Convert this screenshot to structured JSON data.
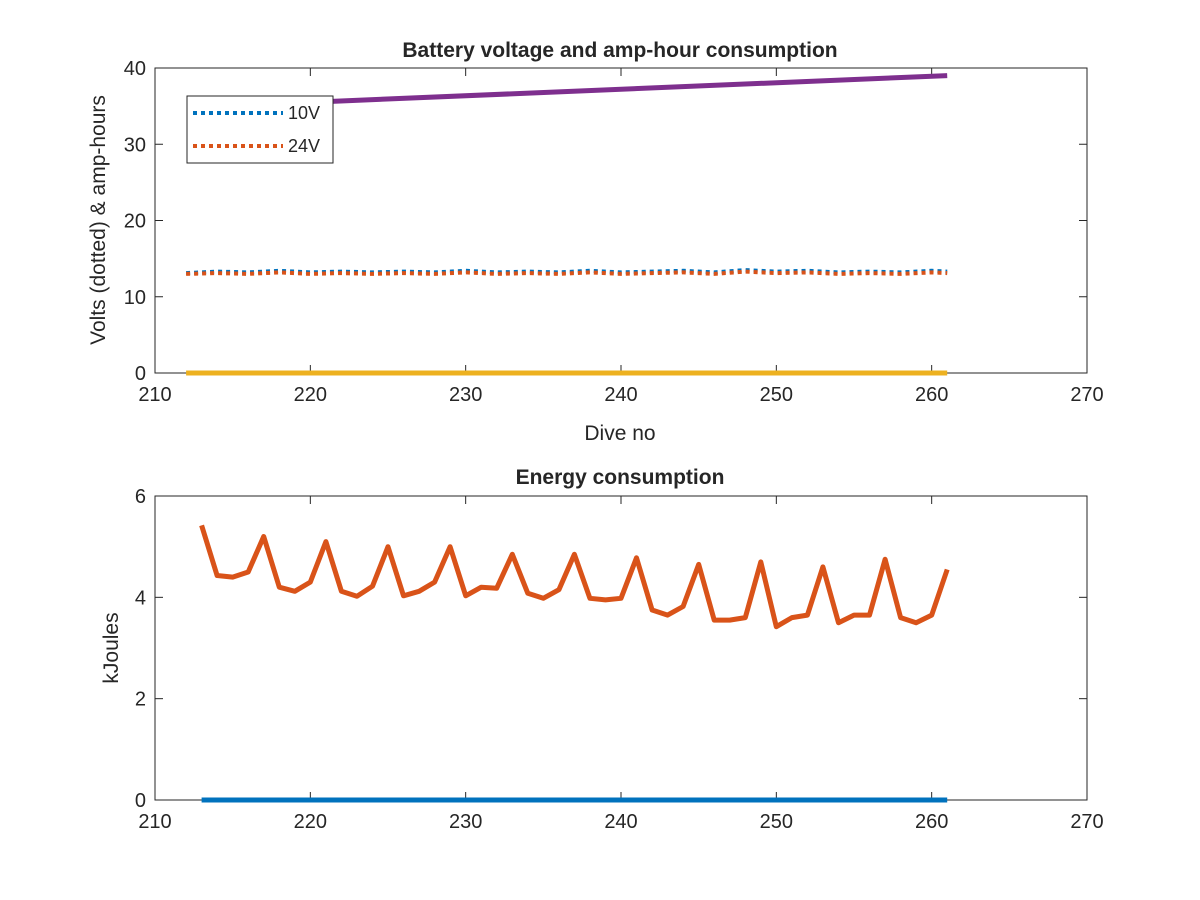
{
  "chart_data": [
    {
      "type": "line",
      "title": "Battery voltage and amp-hour consumption",
      "xlabel": "Dive no",
      "ylabel": "Volts (dotted) & amp-hours",
      "xlim": [
        210,
        270
      ],
      "ylim": [
        0,
        40
      ],
      "xticks": [
        "210",
        "220",
        "230",
        "240",
        "250",
        "260",
        "270"
      ],
      "yticks": [
        "0",
        "10",
        "20",
        "30",
        "40"
      ],
      "legend_position": "top-left",
      "series": [
        {
          "name": "10V",
          "style": "dotted",
          "color": "#0072BD",
          "x": [
            212,
            214,
            216,
            218,
            220,
            222,
            224,
            226,
            228,
            230,
            232,
            234,
            236,
            238,
            240,
            242,
            244,
            246,
            248,
            250,
            252,
            254,
            256,
            258,
            260,
            261
          ],
          "y": [
            13.1,
            13.3,
            13.2,
            13.4,
            13.2,
            13.3,
            13.2,
            13.3,
            13.2,
            13.4,
            13.2,
            13.3,
            13.2,
            13.4,
            13.2,
            13.3,
            13.4,
            13.2,
            13.5,
            13.3,
            13.4,
            13.2,
            13.3,
            13.2,
            13.4,
            13.3
          ]
        },
        {
          "name": "24V",
          "style": "dotted",
          "color": "#D95319",
          "x": [
            212,
            214,
            216,
            218,
            220,
            222,
            224,
            226,
            228,
            230,
            232,
            234,
            236,
            238,
            240,
            242,
            244,
            246,
            248,
            250,
            252,
            254,
            256,
            258,
            260,
            261
          ],
          "y": [
            13.0,
            13.1,
            13.0,
            13.2,
            13.0,
            13.1,
            13.0,
            13.1,
            13.0,
            13.2,
            13.0,
            13.1,
            13.0,
            13.2,
            13.0,
            13.1,
            13.2,
            13.0,
            13.3,
            13.1,
            13.2,
            13.0,
            13.1,
            13.0,
            13.2,
            13.1
          ]
        },
        {
          "style": "solid",
          "color": "#EDB120",
          "x": [
            212,
            261
          ],
          "y": [
            0,
            0
          ]
        },
        {
          "style": "solid",
          "color": "#7E2F8E",
          "x": [
            221,
            261
          ],
          "y": [
            35.6,
            39.0
          ]
        }
      ]
    },
    {
      "type": "line",
      "title": "Energy consumption",
      "xlabel": "",
      "ylabel": "kJoules",
      "xlim": [
        210,
        270
      ],
      "ylim": [
        0,
        6
      ],
      "xticks": [
        "210",
        "220",
        "230",
        "240",
        "250",
        "260",
        "270"
      ],
      "yticks": [
        "0",
        "2",
        "4",
        "6"
      ],
      "series": [
        {
          "style": "solid",
          "color": "#D95319",
          "x": [
            213,
            214,
            215,
            216,
            217,
            218,
            219,
            220,
            221,
            222,
            223,
            224,
            225,
            226,
            227,
            228,
            229,
            230,
            231,
            232,
            233,
            234,
            235,
            236,
            237,
            238,
            239,
            240,
            241,
            242,
            243,
            244,
            245,
            246,
            247,
            248,
            249,
            250,
            251,
            252,
            253,
            254,
            255,
            256,
            257,
            258,
            259,
            260,
            261
          ],
          "y": [
            5.42,
            4.43,
            4.4,
            4.5,
            5.2,
            4.2,
            4.12,
            4.3,
            5.1,
            4.12,
            4.02,
            4.22,
            5.0,
            4.03,
            4.12,
            4.3,
            5.0,
            4.03,
            4.2,
            4.18,
            4.85,
            4.08,
            3.98,
            4.15,
            4.85,
            3.98,
            3.95,
            3.98,
            4.78,
            3.75,
            3.65,
            3.82,
            4.65,
            3.55,
            3.55,
            3.6,
            4.7,
            3.42,
            3.6,
            3.65,
            4.6,
            3.5,
            3.65,
            3.65,
            4.75,
            3.6,
            3.5,
            3.65,
            4.55
          ]
        },
        {
          "style": "solid",
          "color": "#0072BD",
          "x": [
            213,
            261
          ],
          "y": [
            0,
            0
          ]
        }
      ]
    }
  ]
}
